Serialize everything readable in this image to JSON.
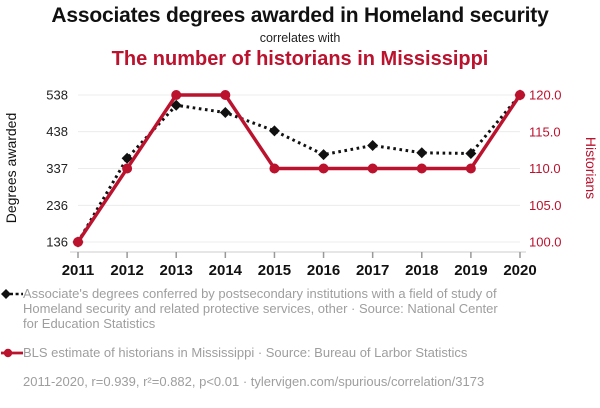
{
  "header": {
    "title_top": "Associates degrees awarded in Homeland security",
    "connector": "correlates with",
    "title_bottom": "The number of historians in Mississippi"
  },
  "colors": {
    "red": "#bb122e",
    "ink": "#111111",
    "muted_text": "#9e9e9e",
    "gridline": "#ececec",
    "axis_line": "#cccccc",
    "tick_mark": "#999999"
  },
  "chart_data": {
    "type": "line",
    "x": [
      2011,
      2012,
      2013,
      2014,
      2015,
      2016,
      2017,
      2018,
      2019,
      2020
    ],
    "series": [
      {
        "name": "Associates degrees awarded in Homeland security",
        "axis": "left",
        "color": "#111111",
        "style": "dashed",
        "marker": "diamond",
        "values": [
          136,
          365,
          510,
          490,
          440,
          375,
          400,
          380,
          378,
          538
        ]
      },
      {
        "name": "Number of historians in Mississippi",
        "axis": "right",
        "color": "#bb122e",
        "style": "solid",
        "marker": "circle",
        "values": [
          100,
          110,
          120,
          120,
          110,
          110,
          110,
          110,
          110,
          120
        ]
      }
    ],
    "left_axis": {
      "label": "Degrees awarded",
      "range": [
        136,
        538
      ],
      "ticks": [
        136,
        236,
        337,
        438,
        538
      ]
    },
    "right_axis": {
      "label": "Historians",
      "range": [
        100,
        120
      ],
      "ticks": [
        {
          "value": 100,
          "label": "100.0"
        },
        {
          "value": 105,
          "label": "105.0"
        },
        {
          "value": 110,
          "label": "110.0"
        },
        {
          "value": 115,
          "label": "115.0"
        },
        {
          "value": 120,
          "label": "120.0"
        }
      ]
    },
    "grid": true,
    "legend_position": "bottom"
  },
  "legend": {
    "items": [
      {
        "series": "degrees",
        "text": "Associate's degrees conferred by postsecondary institutions with a field of study of Homeland security and related protective services, other · Source: National Center for Education Statistics"
      },
      {
        "series": "historians",
        "text": "BLS estimate of historians in Mississippi · Source: Bureau of Larbor Statistics"
      }
    ]
  },
  "footer": {
    "stats": "2011-2020, r=0.939, r²=0.882, p<0.01 · tylervigen.com/spurious/correlation/3173"
  }
}
